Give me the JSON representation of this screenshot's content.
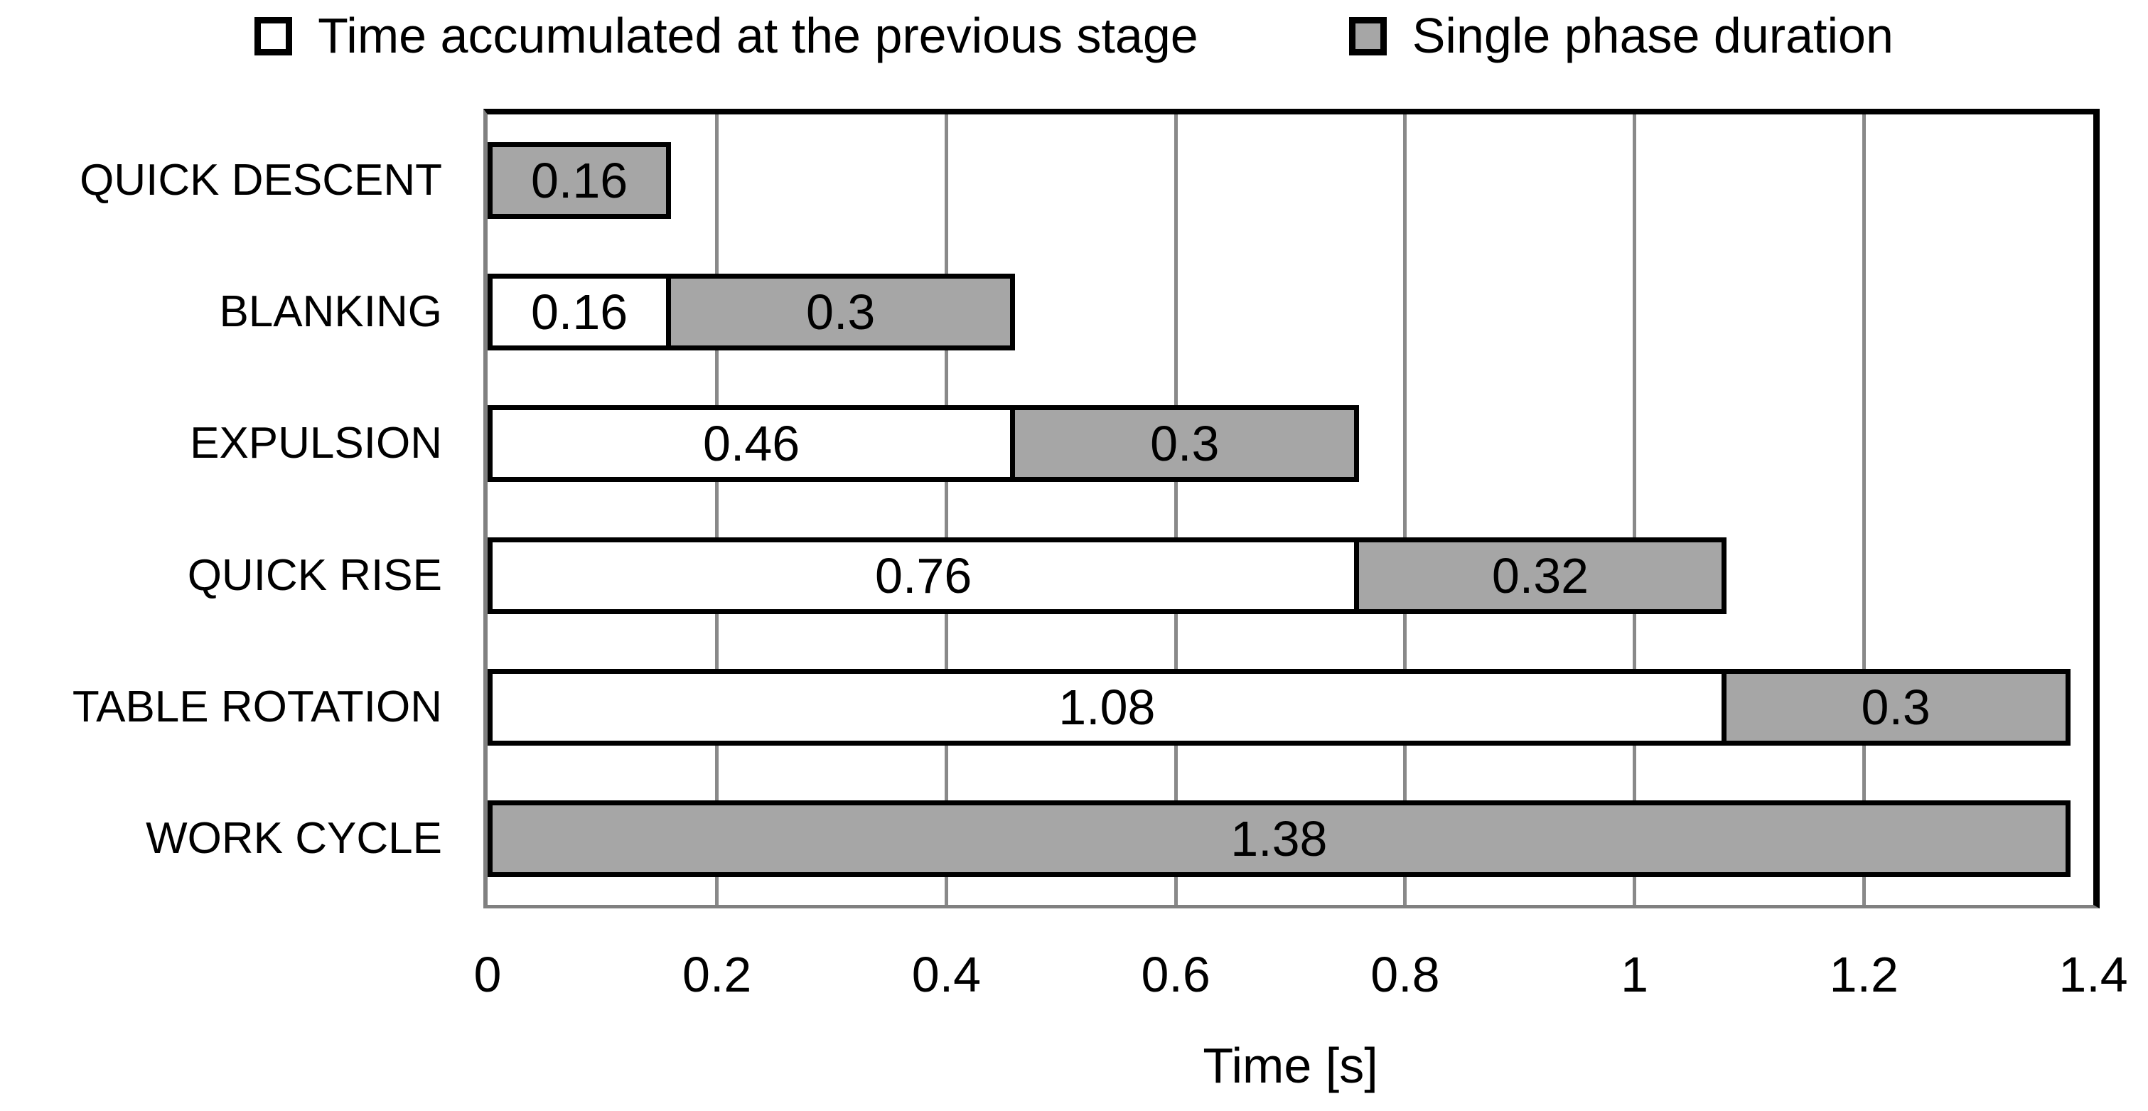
{
  "colors": {
    "background": "#ffffff",
    "bar_gray": "#a6a6a6",
    "bar_border": "#000000",
    "gridline": "#898989",
    "axis_line": "#808080",
    "text": "#000000"
  },
  "chart_data": {
    "type": "bar",
    "orientation": "horizontal-stacked",
    "title": "",
    "xlabel": "Time [s]",
    "ylabel": "",
    "xlim": [
      0,
      1.4
    ],
    "x_tick_values": [
      0,
      0.2,
      0.4,
      0.6,
      0.8,
      1,
      1.2,
      1.4
    ],
    "x_tick_labels": [
      "0",
      "0.2",
      "0.4",
      "0.6",
      "0.8",
      "1",
      "1.2",
      "1.4"
    ],
    "grid": "vertical-gridlines",
    "legend_position": "top-center",
    "series": [
      {
        "name": "Time accumulated at the previous stage",
        "fill": "#ffffff"
      },
      {
        "name": "Single phase duration",
        "fill": "#a6a6a6"
      }
    ],
    "categories": [
      "QUICK DESCENT",
      "BLANKING",
      "EXPULSION",
      "QUICK RISE",
      "TABLE ROTATION",
      "WORK CYCLE"
    ],
    "rows": [
      {
        "category": "QUICK DESCENT",
        "accumulated": null,
        "accumulated_label": null,
        "phase": 0.16,
        "phase_label": "0.16"
      },
      {
        "category": "BLANKING",
        "accumulated": 0.16,
        "accumulated_label": "0.16",
        "phase": 0.3,
        "phase_label": "0.3"
      },
      {
        "category": "EXPULSION",
        "accumulated": 0.46,
        "accumulated_label": "0.46",
        "phase": 0.3,
        "phase_label": "0.3"
      },
      {
        "category": "QUICK RISE",
        "accumulated": 0.76,
        "accumulated_label": "0.76",
        "phase": 0.32,
        "phase_label": "0.32"
      },
      {
        "category": "TABLE ROTATION",
        "accumulated": 1.08,
        "accumulated_label": "1.08",
        "phase": 0.3,
        "phase_label": "0.3"
      },
      {
        "category": "WORK CYCLE",
        "accumulated": null,
        "accumulated_label": null,
        "phase": 1.38,
        "phase_label": "1.38"
      }
    ]
  }
}
